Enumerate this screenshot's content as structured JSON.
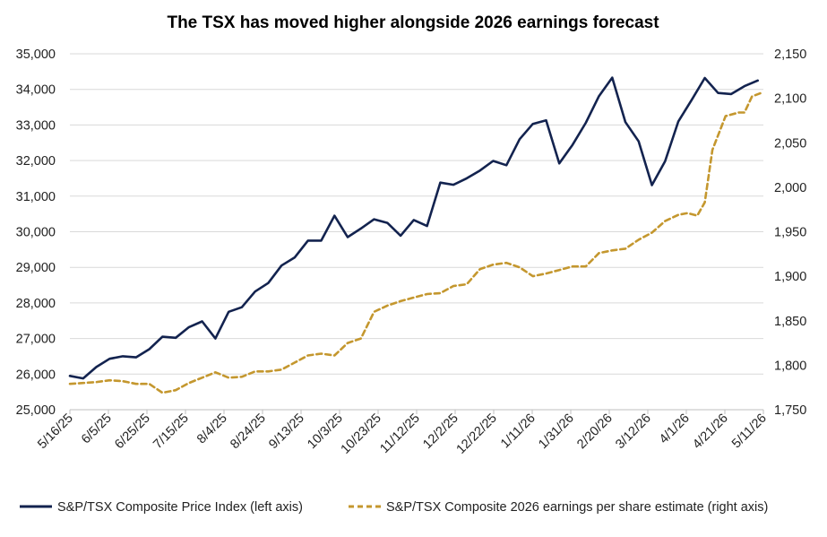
{
  "chart_data": {
    "type": "line",
    "title": "The TSX has moved higher alongside 2026 earnings forecast",
    "colors": {
      "price": "#13234f",
      "eps": "#c4972e",
      "grid": "#d9d9d9"
    },
    "x_tick_labels": [
      "5/16/25",
      "6/5/25",
      "6/25/25",
      "7/15/25",
      "8/4/25",
      "8/24/25",
      "9/13/25",
      "10/3/25",
      "10/23/25",
      "11/12/25",
      "12/2/25",
      "12/22/25",
      "1/11/26",
      "1/31/26",
      "2/20/26",
      "3/12/26",
      "4/1/26",
      "4/21/26",
      "5/11/26"
    ],
    "x_range": [
      "2025-05-16",
      "2026-05-18"
    ],
    "y_left": {
      "range": [
        25000,
        35000
      ],
      "ticks": [
        "25,000",
        "26,000",
        "27,000",
        "28,000",
        "29,000",
        "30,000",
        "31,000",
        "32,000",
        "33,000",
        "34,000",
        "35,000"
      ]
    },
    "y_right": {
      "range": [
        1750,
        2150
      ],
      "ticks": [
        "1,750",
        "1,800",
        "1,850",
        "1,900",
        "1,950",
        "2,000",
        "2,050",
        "2,100",
        "2,150"
      ]
    },
    "grid": true,
    "legend_position": "bottom",
    "series": [
      {
        "name": "S&P/TSX Composite Price Index (left axis)",
        "axis": "left",
        "style": "solid",
        "points": [
          [
            "2025-05-16",
            25950
          ],
          [
            "2025-05-23",
            25880
          ],
          [
            "2025-05-30",
            26200
          ],
          [
            "2025-06-06",
            26430
          ],
          [
            "2025-06-13",
            26500
          ],
          [
            "2025-06-20",
            26470
          ],
          [
            "2025-06-27",
            26700
          ],
          [
            "2025-07-04",
            27050
          ],
          [
            "2025-07-11",
            27020
          ],
          [
            "2025-07-18",
            27320
          ],
          [
            "2025-07-25",
            27480
          ],
          [
            "2025-08-01",
            27000
          ],
          [
            "2025-08-08",
            27750
          ],
          [
            "2025-08-15",
            27880
          ],
          [
            "2025-08-22",
            28320
          ],
          [
            "2025-08-29",
            28560
          ],
          [
            "2025-09-05",
            29050
          ],
          [
            "2025-09-12",
            29280
          ],
          [
            "2025-09-19",
            29750
          ],
          [
            "2025-09-26",
            29750
          ],
          [
            "2025-10-03",
            30450
          ],
          [
            "2025-10-10",
            29850
          ],
          [
            "2025-10-17",
            30090
          ],
          [
            "2025-10-24",
            30350
          ],
          [
            "2025-10-31",
            30250
          ],
          [
            "2025-11-07",
            29890
          ],
          [
            "2025-11-14",
            30330
          ],
          [
            "2025-11-21",
            30160
          ],
          [
            "2025-11-28",
            31380
          ],
          [
            "2025-12-05",
            31320
          ],
          [
            "2025-12-12",
            31500
          ],
          [
            "2025-12-19",
            31720
          ],
          [
            "2025-12-26",
            31990
          ],
          [
            "2026-01-02",
            31870
          ],
          [
            "2026-01-09",
            32600
          ],
          [
            "2026-01-16",
            33030
          ],
          [
            "2026-01-23",
            33130
          ],
          [
            "2026-01-30",
            31920
          ],
          [
            "2026-02-06",
            32440
          ],
          [
            "2026-02-13",
            33060
          ],
          [
            "2026-02-20",
            33810
          ],
          [
            "2026-02-27",
            34330
          ],
          [
            "2026-03-06",
            33080
          ],
          [
            "2026-03-13",
            32540
          ],
          [
            "2026-03-20",
            31310
          ],
          [
            "2026-03-27",
            31980
          ],
          [
            "2026-04-03",
            33100
          ],
          [
            "2026-04-10",
            33700
          ],
          [
            "2026-04-17",
            34320
          ],
          [
            "2026-04-24",
            33900
          ],
          [
            "2026-05-01",
            33870
          ],
          [
            "2026-05-08",
            34090
          ],
          [
            "2026-05-15",
            34250
          ]
        ]
      },
      {
        "name": "S&P/TSX Composite 2026 earnings per share estimate (right axis)",
        "axis": "right",
        "style": "dashed",
        "points": [
          [
            "2025-05-16",
            1779
          ],
          [
            "2025-05-23",
            1780
          ],
          [
            "2025-05-30",
            1781
          ],
          [
            "2025-06-06",
            1783
          ],
          [
            "2025-06-13",
            1782
          ],
          [
            "2025-06-20",
            1779
          ],
          [
            "2025-06-27",
            1779
          ],
          [
            "2025-07-04",
            1769
          ],
          [
            "2025-07-11",
            1772
          ],
          [
            "2025-07-18",
            1780
          ],
          [
            "2025-07-25",
            1786
          ],
          [
            "2025-08-01",
            1792
          ],
          [
            "2025-08-08",
            1786
          ],
          [
            "2025-08-15",
            1787
          ],
          [
            "2025-08-22",
            1793
          ],
          [
            "2025-08-29",
            1793
          ],
          [
            "2025-09-05",
            1795
          ],
          [
            "2025-09-12",
            1803
          ],
          [
            "2025-09-19",
            1811
          ],
          [
            "2025-09-26",
            1813
          ],
          [
            "2025-10-03",
            1811
          ],
          [
            "2025-10-10",
            1825
          ],
          [
            "2025-10-17",
            1830
          ],
          [
            "2025-10-24",
            1860
          ],
          [
            "2025-10-31",
            1867
          ],
          [
            "2025-11-07",
            1872
          ],
          [
            "2025-11-14",
            1876
          ],
          [
            "2025-11-21",
            1880
          ],
          [
            "2025-11-28",
            1881
          ],
          [
            "2025-12-05",
            1889
          ],
          [
            "2025-12-12",
            1891
          ],
          [
            "2025-12-19",
            1908
          ],
          [
            "2025-12-26",
            1913
          ],
          [
            "2026-01-02",
            1915
          ],
          [
            "2026-01-09",
            1910
          ],
          [
            "2026-01-16",
            1900
          ],
          [
            "2026-01-23",
            1903
          ],
          [
            "2026-01-30",
            1907
          ],
          [
            "2026-02-06",
            1911
          ],
          [
            "2026-02-13",
            1911
          ],
          [
            "2026-02-20",
            1926
          ],
          [
            "2026-02-27",
            1929
          ],
          [
            "2026-03-06",
            1931
          ],
          [
            "2026-03-13",
            1941
          ],
          [
            "2026-03-20",
            1949
          ],
          [
            "2026-03-27",
            1962
          ],
          [
            "2026-04-03",
            1969
          ],
          [
            "2026-04-08",
            1971
          ],
          [
            "2026-04-13",
            1968
          ],
          [
            "2026-04-17",
            1983
          ],
          [
            "2026-04-21",
            2042
          ],
          [
            "2026-04-28",
            2080
          ],
          [
            "2026-05-05",
            2084
          ],
          [
            "2026-05-08",
            2084
          ],
          [
            "2026-05-12",
            2102
          ],
          [
            "2026-05-18",
            2107
          ]
        ]
      }
    ]
  }
}
